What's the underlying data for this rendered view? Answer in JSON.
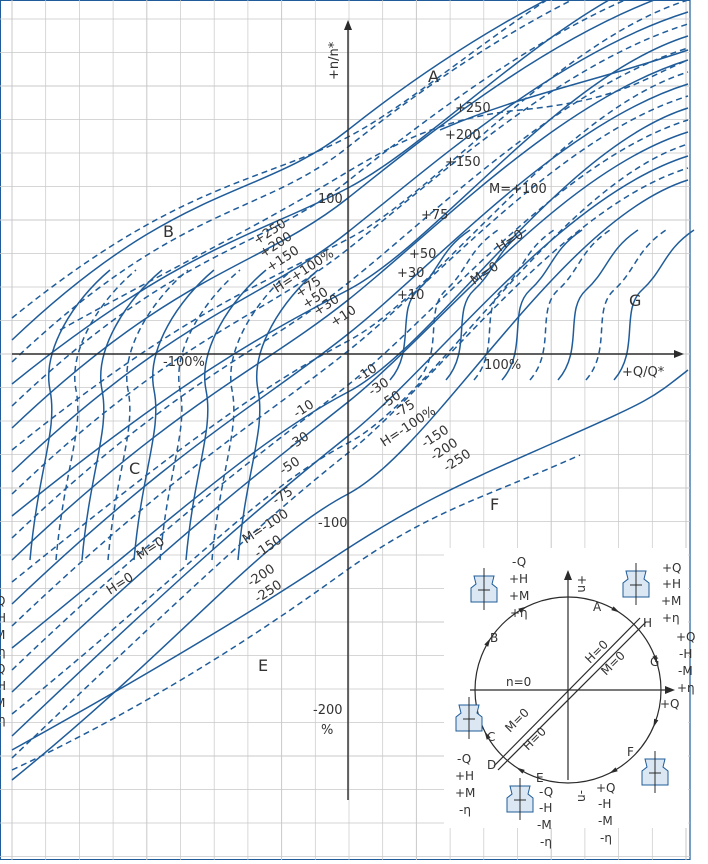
{
  "colors": {
    "curve": "#1f5c99",
    "grid": "#c8c8c8",
    "axis": "#2b2b2b",
    "frame": "#1f5c99",
    "text": "#333333"
  },
  "axes": {
    "y_label": "+n/n*",
    "x_label": "+Q/Q*",
    "x_100": "100%",
    "x_neg100": "-100%",
    "y_neg200": "-200",
    "y_neg200_unit": "%",
    "y_100": "100"
  },
  "regions": {
    "A": "A",
    "B": "B",
    "C": "C",
    "E": "E",
    "F": "F",
    "G": "G"
  },
  "upper_labels": {
    "p250": "+250",
    "p200": "+200",
    "p150": "+150",
    "m100": "M=+100",
    "p75": "+75",
    "p50": "+50",
    "p30": "+30",
    "p10": "+10",
    "h0": "H=0",
    "m0": "M=0",
    "l250": "+250",
    "l200": "+200",
    "l150": "+150",
    "h100": "H=+100%",
    "l75": "+75",
    "l50": "+50",
    "l30": "+30",
    "l10": "+10"
  },
  "lower_labels": {
    "n10": "-10",
    "n30": "-30",
    "n50": "-50",
    "n75": "-75",
    "hn100": "H=-100%",
    "n150": "-150",
    "n200": "-200",
    "n250": "-250",
    "l10": "-10",
    "l30": "-30",
    "l50": "-50",
    "l75": "-75",
    "m100": "M=-100",
    "l150": "-150",
    "l200": "-200",
    "l250": "-250",
    "n100": "-100",
    "m0": "M=0",
    "h0": "H=0"
  },
  "left_edge": [
    "Q",
    "H",
    "M",
    "η",
    "Q",
    "H",
    "M",
    "η"
  ],
  "inset": {
    "top_axis": "+n",
    "bottom_axis": "-n",
    "right_axis": "+Q",
    "center_label": "n=0",
    "pt_A": "A",
    "pt_H": "H",
    "pt_G": "G",
    "pt_F": "F",
    "pt_E": "E",
    "pt_D": "D",
    "pt_C": "C",
    "pt_B": "B",
    "line_H0_upper": "H=0",
    "line_M0_upper": "M=0",
    "line_M0_lower": "M=0",
    "line_H0_lower": "H=0",
    "q_top_left": [
      "-Q",
      "+H",
      "+M",
      "+η"
    ],
    "q_top_right": [
      "+Q",
      "+H",
      "+M",
      "+η"
    ],
    "q_right": [
      "+Q",
      "-H",
      "-M",
      "+η"
    ],
    "q_left": [
      "-Q",
      "+H",
      "+M",
      "-η"
    ],
    "q_bottom": [
      "-Q",
      "-H",
      "-M",
      "-η"
    ],
    "q_bottom_right": [
      "+Q",
      "-H",
      "-M",
      "-η"
    ]
  }
}
